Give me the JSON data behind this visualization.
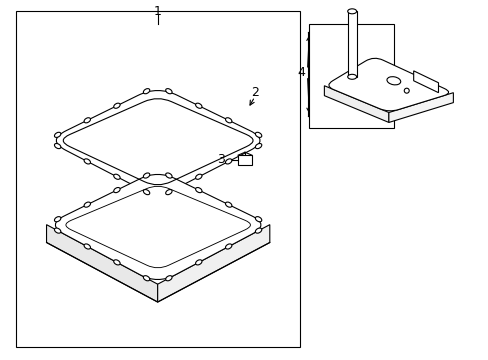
{
  "bg_color": "#ffffff",
  "line_color": "#000000",
  "fig_width": 4.89,
  "fig_height": 3.6,
  "dpi": 100,
  "lw": 0.8,
  "lw_thick": 1.0,
  "label_fontsize": 9
}
